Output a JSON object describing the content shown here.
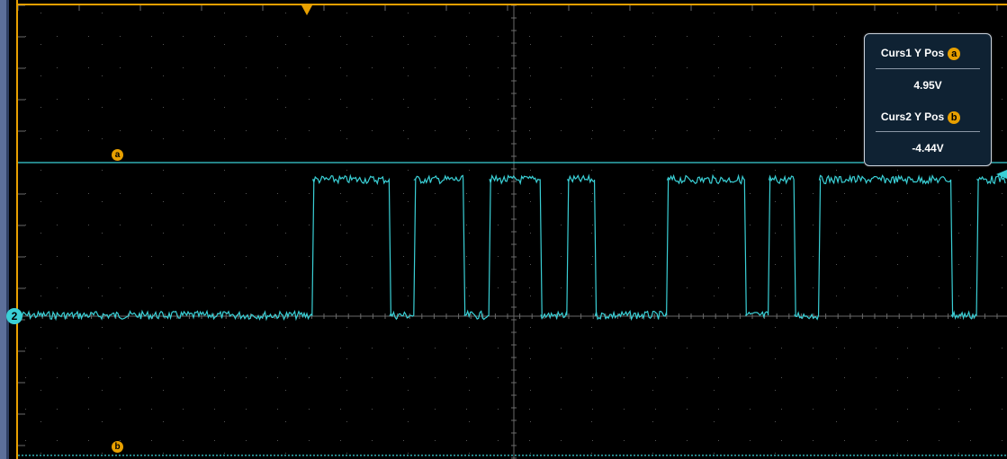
{
  "channel": {
    "number": "2",
    "color": "#3ad0d6"
  },
  "cursor_color": "#e8a000",
  "cursors": {
    "a": {
      "label": "a"
    },
    "b": {
      "label": "b"
    }
  },
  "readout": {
    "curs1_label": "Curs1 Y Pos",
    "curs1_badge": "a",
    "curs1_value": "4.95V",
    "curs2_label": "Curs2 Y Pos",
    "curs2_badge": "b",
    "curs2_value": "-4.44V"
  },
  "trigger_marker": "trigger-position-icon",
  "waveform": {
    "transitions_x_fraction": [
      0.0,
      0.297,
      0.375,
      0.4,
      0.45,
      0.476,
      0.528,
      0.555,
      0.583,
      0.656,
      0.735,
      0.759,
      0.785,
      0.81,
      0.944,
      0.97
    ],
    "levels": [
      "low",
      "high",
      "low",
      "high",
      "low",
      "high",
      "low",
      "high",
      "low",
      "high",
      "low",
      "high",
      "low",
      "high",
      "low",
      "high"
    ]
  }
}
